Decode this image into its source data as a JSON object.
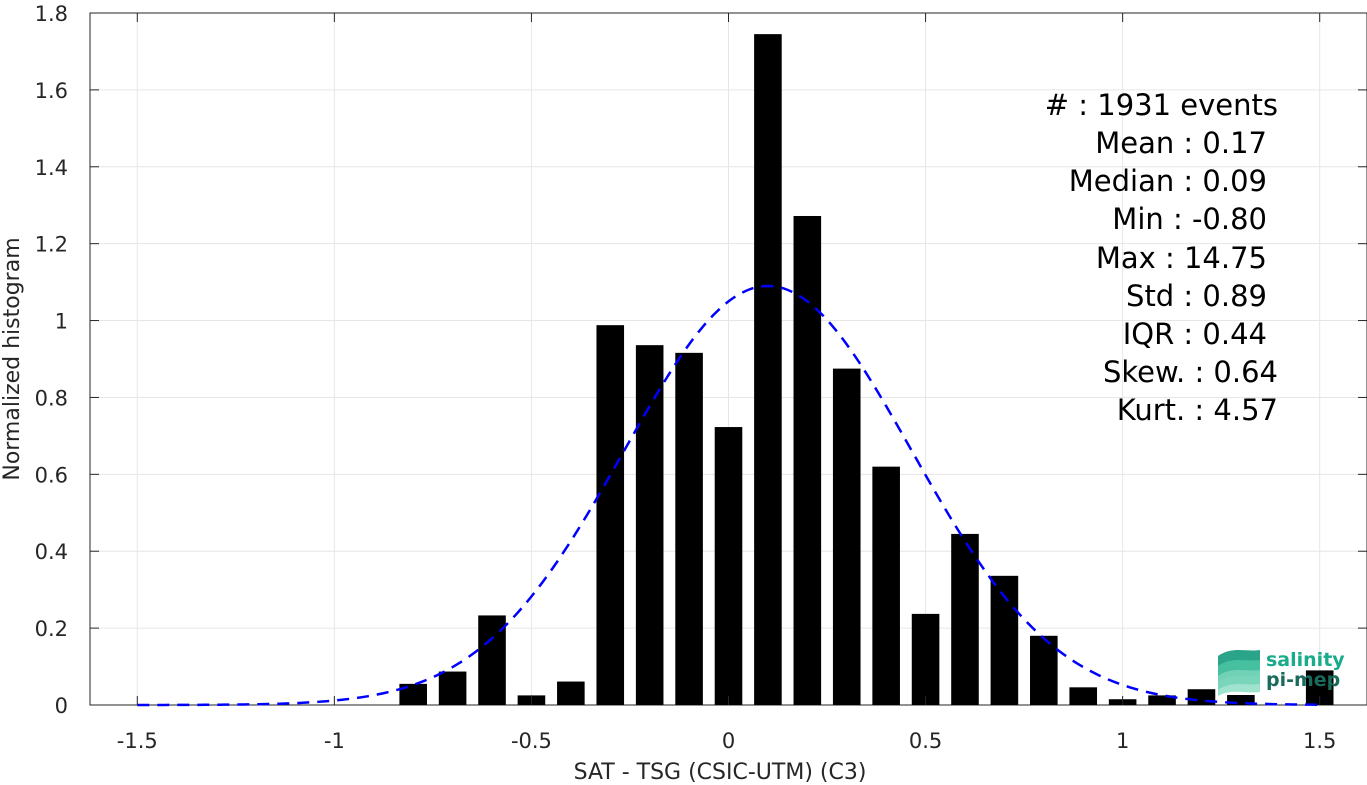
{
  "chart_data": {
    "type": "bar",
    "xlabel": "SAT - TSG (CSIC-UTM) (C3)",
    "ylabel": "Normalized histogram",
    "xlim": [
      -1.62,
      1.62
    ],
    "ylim": [
      0,
      1.8
    ],
    "x_ticks": [
      -1.5,
      -1,
      -0.5,
      0,
      0.5,
      1,
      1.5
    ],
    "x_tick_labels": [
      "-1.5",
      "-1",
      "-0.5",
      "0",
      "0.5",
      "1",
      "1.5"
    ],
    "y_ticks": [
      0,
      0.2,
      0.4,
      0.6,
      0.8,
      1,
      1.2,
      1.4,
      1.6,
      1.8
    ],
    "y_tick_labels": [
      "0",
      "0.2",
      "0.4",
      "0.6",
      "0.8",
      "1",
      "1.2",
      "1.4",
      "1.6",
      "1.8"
    ],
    "grid": true,
    "bar_color": "#000000",
    "bin_width": 0.1,
    "bars": [
      {
        "x": -0.8,
        "y": 0.055
      },
      {
        "x": -0.7,
        "y": 0.087
      },
      {
        "x": -0.6,
        "y": 0.233
      },
      {
        "x": -0.5,
        "y": 0.025
      },
      {
        "x": -0.4,
        "y": 0.061
      },
      {
        "x": -0.3,
        "y": 0.988
      },
      {
        "x": -0.2,
        "y": 0.936
      },
      {
        "x": -0.1,
        "y": 0.916
      },
      {
        "x": 0.0,
        "y": 0.723
      },
      {
        "x": 0.1,
        "y": 1.745
      },
      {
        "x": 0.2,
        "y": 1.272
      },
      {
        "x": 0.3,
        "y": 0.875
      },
      {
        "x": 0.4,
        "y": 0.62
      },
      {
        "x": 0.5,
        "y": 0.237
      },
      {
        "x": 0.6,
        "y": 0.445
      },
      {
        "x": 0.7,
        "y": 0.336
      },
      {
        "x": 0.8,
        "y": 0.18
      },
      {
        "x": 0.9,
        "y": 0.046
      },
      {
        "x": 1.0,
        "y": 0.015
      },
      {
        "x": 1.1,
        "y": 0.025
      },
      {
        "x": 1.2,
        "y": 0.041
      },
      {
        "x": 1.3,
        "y": 0.026
      },
      {
        "x": 1.5,
        "y": 0.09
      }
    ],
    "fit_curve": {
      "style": "dashed",
      "color": "#0000ff",
      "mean": 0.1,
      "sigma": 0.365,
      "peak": 1.09,
      "x_range": [
        -1.5,
        1.5
      ]
    },
    "stats": [
      "#  : 1931 events",
      "Mean : 0.17",
      "Median : 0.09",
      "Min : -0.80",
      "Max : 14.75",
      "Std : 0.89",
      "IQR : 0.44",
      "Skew. : 0.64",
      "Kurt. : 4.57"
    ]
  },
  "logo": {
    "line1": "salinity",
    "line2": "pi-mep",
    "color": "#1aaa8c"
  }
}
